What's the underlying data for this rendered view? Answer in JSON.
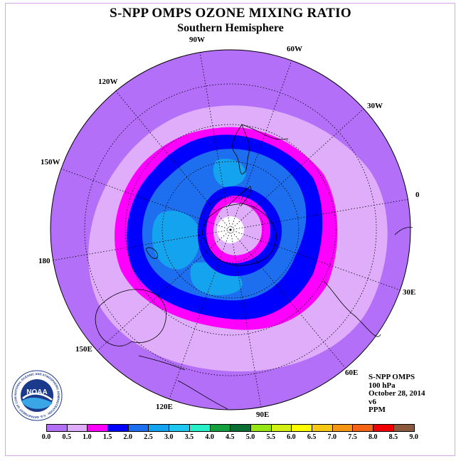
{
  "header": {
    "title": "S-NPP OMPS OZONE MIXING RATIO",
    "subtitle": "Southern Hemisphere"
  },
  "map": {
    "projection": "south-polar-stereographic",
    "longitude_labels": [
      "90W",
      "60W",
      "30W",
      "0",
      "30E",
      "60E",
      "90E",
      "120E",
      "150E",
      "180",
      "150W",
      "120W"
    ],
    "contour_colors": [
      "#b36ff7",
      "#dfadf9",
      "#ff00ff",
      "#0000ff",
      "#1e6fef",
      "#14a3ee",
      "#ffffff"
    ]
  },
  "info": {
    "instrument": "S-NPP OMPS",
    "level": "100 hPa",
    "date": "October 28, 2014",
    "version": "v6",
    "units": "PPM"
  },
  "colorbar": {
    "colors": [
      "#b36ff7",
      "#dfadf9",
      "#ff00ff",
      "#0000ff",
      "#1e6fef",
      "#14a3ee",
      "#1ec8f0",
      "#28f0c8",
      "#14a03c",
      "#0a6e32",
      "#96e614",
      "#d2f014",
      "#ffff00",
      "#f5c814",
      "#f59614",
      "#f56414",
      "#f00000",
      "#8b5a3c"
    ],
    "ticks": [
      "0.0",
      "0.5",
      "1.0",
      "1.5",
      "2.0",
      "2.5",
      "3.0",
      "3.5",
      "4.0",
      "4.5",
      "5.0",
      "5.5",
      "6.0",
      "6.5",
      "7.0",
      "7.5",
      "8.0",
      "8.5",
      "9.0"
    ]
  },
  "logo": {
    "text": "NOAA",
    "ring_text": "NATIONAL OCEANIC AND ATMOSPHERIC ADMINISTRATION · U.S. DEPARTMENT OF COMMERCE"
  }
}
